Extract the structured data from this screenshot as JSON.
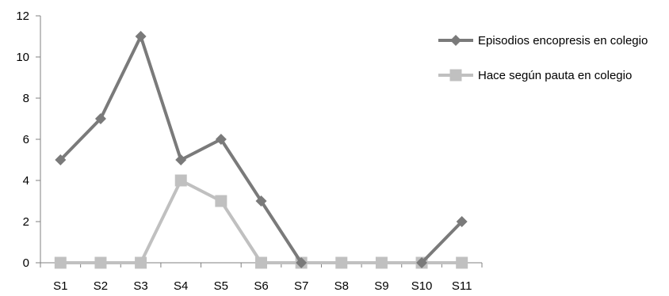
{
  "chart_data": {
    "type": "line",
    "categories": [
      "S1",
      "S2",
      "S3",
      "S4",
      "S5",
      "S6",
      "S7",
      "S8",
      "S9",
      "S10",
      "S11"
    ],
    "ylim": [
      0,
      12
    ],
    "yticks": [
      0,
      2,
      4,
      6,
      8,
      10,
      12
    ],
    "grid": false,
    "legend_position": "top-right",
    "series": [
      {
        "name": "Episodios encopresis en colegio",
        "values": [
          5,
          7,
          11,
          5,
          6,
          3,
          0,
          null,
          null,
          0,
          2
        ],
        "color": "#7a7a7a",
        "marker": "diamond"
      },
      {
        "name": "Hace según pauta en colegio",
        "values": [
          0,
          0,
          0,
          4,
          3,
          0,
          0,
          0,
          0,
          0,
          0
        ],
        "color": "#c0c0c0",
        "marker": "square"
      }
    ]
  }
}
